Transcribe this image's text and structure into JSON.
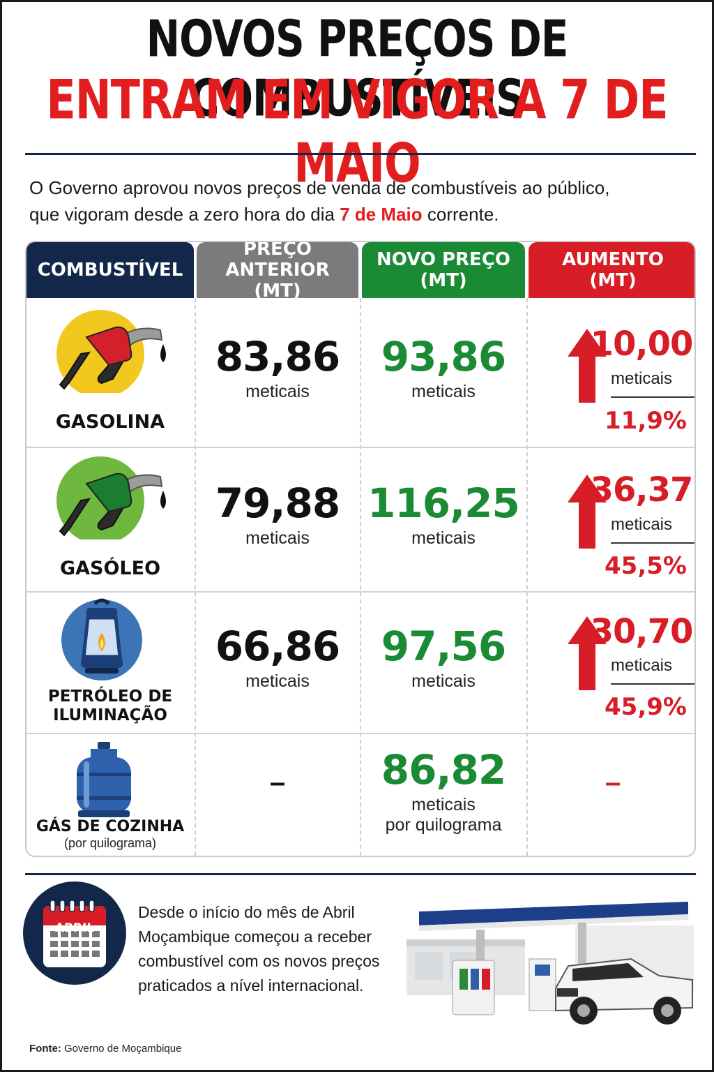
{
  "title_line1": "NOVOS PREÇOS DE COMBUSTÍVEIS",
  "title_line2": "ENTRAM EM VIGOR A 7 DE MAIO",
  "intro": {
    "part1": "O Governo aprovou novos preços de venda de combustíveis ao público,",
    "part2": "que vigoram desde a zero hora do dia ",
    "highlight": "7 de Maio",
    "part3": " corrente."
  },
  "table": {
    "headers": {
      "fuel": "COMBUSTÍVEL",
      "prev_line1": "PREÇO ANTERIOR",
      "prev_line2": "(MT)",
      "new_line1": "NOVO PREÇO",
      "new_line2": "(MT)",
      "inc_line1": "AUMENTO",
      "inc_line2": "(MT)"
    },
    "rows": [
      {
        "name": "GASOLINA",
        "icon": "gas-pump-nozzle-red-icon",
        "prev_price": "83,86",
        "prev_unit": "meticais",
        "new_price": "93,86",
        "new_unit": "meticais",
        "increase": "10,00",
        "increase_unit": "meticais",
        "increase_pct": "11,9%"
      },
      {
        "name": "GASÓLEO",
        "icon": "gas-pump-nozzle-green-icon",
        "prev_price": "79,88",
        "prev_unit": "meticais",
        "new_price": "116,25",
        "new_unit": "meticais",
        "increase": "36,37",
        "increase_unit": "meticais",
        "increase_pct": "45,5%"
      },
      {
        "name_line1": "PETRÓLEO DE",
        "name_line2": "ILUMINAÇÃO",
        "icon": "oil-lantern-icon",
        "prev_price": "66,86",
        "prev_unit": "meticais",
        "new_price": "97,56",
        "new_unit": "meticais",
        "increase": "30,70",
        "increase_unit": "meticais",
        "increase_pct": "45,9%"
      },
      {
        "name": "GÁS DE COZINHA",
        "name_sub": "(por quilograma)",
        "icon": "gas-cylinder-icon",
        "prev_price": "–",
        "new_price": "86,82",
        "new_unit": "meticais",
        "new_unit_sub": "por quilograma",
        "increase": "–"
      }
    ]
  },
  "calendar_label": "ABRIL",
  "footnote": {
    "line1": "Desde o início do mês de Abril",
    "line2": "Moçambique começou a receber",
    "line3": "combustível com os novos preços",
    "line4": "praticados a nível internacional."
  },
  "source": {
    "label": "Fonte:",
    "value": " Governo de Moçambique"
  },
  "colors": {
    "navy": "#13274a",
    "red": "#d71e26",
    "green": "#1a8a34",
    "grey": "#7b7b7b"
  }
}
